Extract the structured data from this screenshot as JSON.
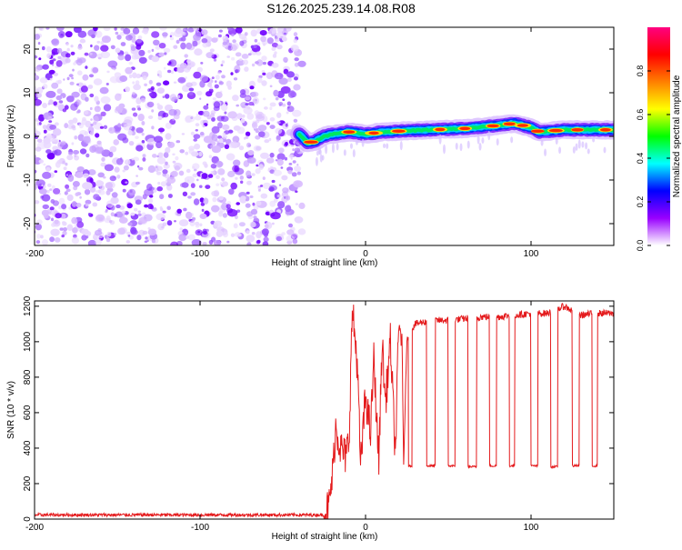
{
  "title": "S126.2025.239.14.08.R08",
  "chart_data": [
    {
      "type": "heatmap",
      "xlabel": "Height of straight line (km)",
      "ylabel": "Frequency (Hz)",
      "xlim": [
        -200,
        150
      ],
      "ylim": [
        -25,
        25
      ],
      "xticks": [
        -200,
        -100,
        0,
        100
      ],
      "yticks": [
        -20,
        -10,
        0,
        10,
        20
      ],
      "xtick_labels": [
        "-200",
        "-100",
        "0",
        "100"
      ],
      "ytick_labels": [
        "-20",
        "-10",
        "0",
        "10",
        "20"
      ],
      "noise_region_x": [
        -200,
        -40
      ],
      "ridge": {
        "x": [
          -40,
          -35,
          -30,
          -25,
          -20,
          -10,
          0,
          10,
          20,
          40,
          60,
          80,
          90,
          100,
          105,
          120,
          140,
          150
        ],
        "freq": [
          0.5,
          -1.5,
          -1.0,
          0.0,
          0.5,
          1.0,
          0.5,
          1.0,
          1.2,
          1.5,
          1.8,
          2.5,
          3.0,
          2.0,
          1.0,
          1.5,
          1.5,
          1.5
        ]
      },
      "colorbar": {
        "label": "Normalized spectral amplitude",
        "range": [
          0,
          1
        ],
        "ticks": [
          0.0,
          0.2,
          0.4,
          0.6,
          0.8
        ],
        "tick_labels": [
          "0.0",
          "0.2",
          "0.4",
          "0.6",
          "0.8"
        ],
        "colors": [
          "#ffffff",
          "#9900ff",
          "#0000ff",
          "#00ffff",
          "#00ff00",
          "#ffff00",
          "#ff7f00",
          "#ff0000",
          "#ff0080"
        ]
      }
    },
    {
      "type": "line",
      "xlabel": "Height of straight line (km)",
      "ylabel": "SNR (10 * v/v)",
      "xlim": [
        -200,
        150
      ],
      "ylim": [
        0,
        1230
      ],
      "xticks": [
        -200,
        -100,
        0,
        100
      ],
      "yticks": [
        0,
        200,
        400,
        600,
        800,
        1000,
        1200
      ],
      "xtick_labels": [
        "-200",
        "-100",
        "0",
        "100"
      ],
      "ytick_labels": [
        "0",
        "200",
        "400",
        "600",
        "800",
        "1000",
        "1200"
      ],
      "color": "#e41a1c",
      "series": [
        {
          "name": "SNR",
          "x": [
            -200,
            -25,
            -22,
            -20,
            -18,
            -15,
            -12,
            -10,
            -8,
            -5,
            -3,
            0,
            3,
            5,
            8,
            10,
            12,
            15,
            18,
            20,
            22,
            23,
            25,
            30,
            40,
            50,
            60,
            70,
            80,
            90,
            100,
            110,
            120,
            130,
            140,
            150
          ],
          "y": [
            20,
            20,
            80,
            250,
            520,
            400,
            350,
            450,
            1180,
            880,
            300,
            700,
            480,
            900,
            320,
            1000,
            650,
            1000,
            360,
            1060,
            1050,
            300,
            1020,
            1100,
            1120,
            1120,
            1130,
            1140,
            1140,
            1150,
            1160,
            1160,
            1200,
            1150,
            1160,
            1160
          ]
        }
      ],
      "dropouts": [
        {
          "x0": 26,
          "x1": 28,
          "y": 300
        },
        {
          "x0": 37,
          "x1": 42,
          "y": 300
        },
        {
          "x0": 50,
          "x1": 54,
          "y": 300
        },
        {
          "x0": 62,
          "x1": 67,
          "y": 295
        },
        {
          "x0": 75,
          "x1": 79,
          "y": 300
        },
        {
          "x0": 87,
          "x1": 90,
          "y": 300
        },
        {
          "x0": 100,
          "x1": 104,
          "y": 300
        },
        {
          "x0": 112,
          "x1": 116,
          "y": 295
        },
        {
          "x0": 125,
          "x1": 129,
          "y": 300
        },
        {
          "x0": 137,
          "x1": 140,
          "y": 300
        }
      ]
    }
  ]
}
